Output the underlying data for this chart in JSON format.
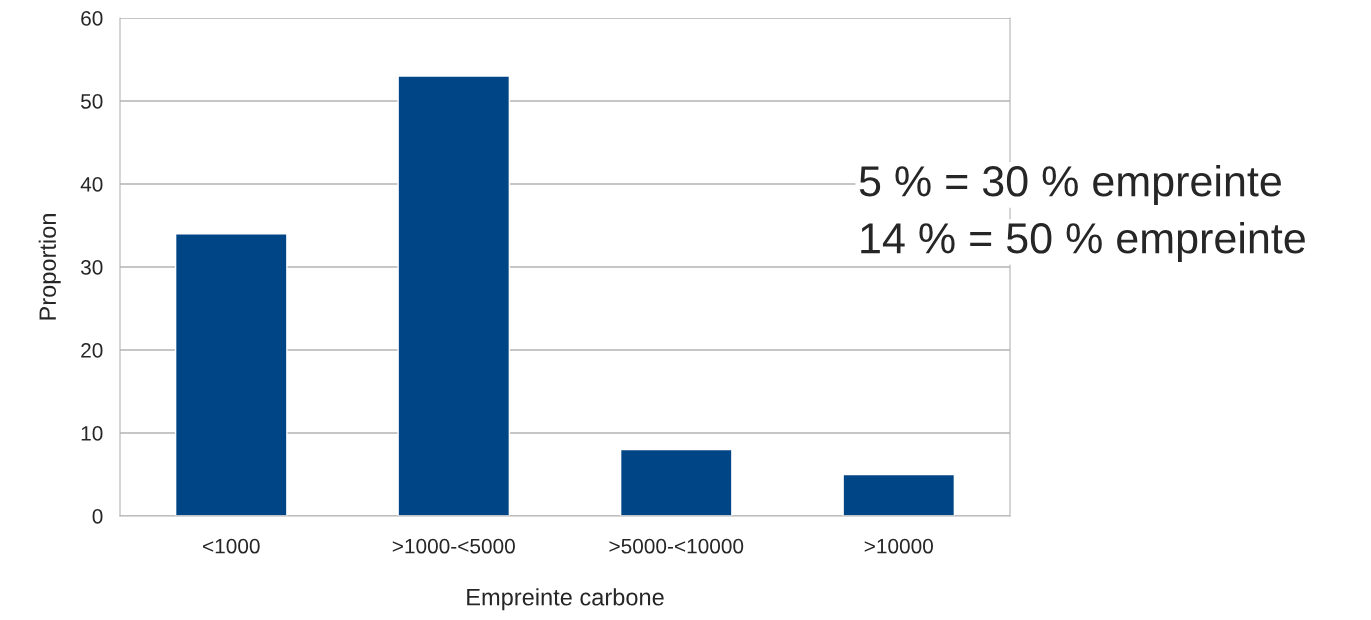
{
  "chart_data": {
    "type": "bar",
    "xlabel": "Empreinte carbone",
    "ylabel": "Proportion",
    "categories": [
      "<1000",
      ">1000-<5000",
      ">5000-<10000",
      ">10000"
    ],
    "values": [
      34,
      53,
      8,
      5
    ],
    "color": "#004586",
    "ylim": [
      0,
      60
    ],
    "yticks": [
      0,
      10,
      20,
      30,
      40,
      50,
      60
    ],
    "grid": "y",
    "annotations": [
      "5 % = 30 % empreinte",
      "14 % = 50 % empreinte"
    ]
  }
}
